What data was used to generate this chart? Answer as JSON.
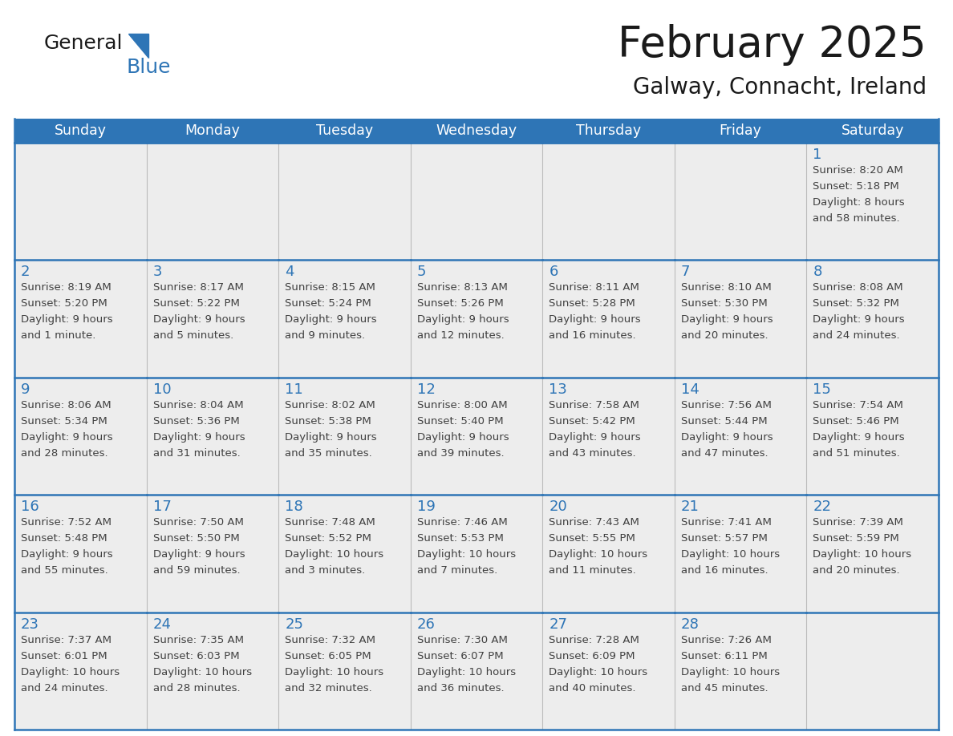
{
  "title": "February 2025",
  "subtitle": "Galway, Connacht, Ireland",
  "header_bg": "#2E75B6",
  "header_text_color": "#FFFFFF",
  "cell_bg_light": "#EDEDED",
  "cell_bg_white": "#FFFFFF",
  "day_number_color": "#2E75B6",
  "detail_text_color": "#404040",
  "border_color": "#2E75B6",
  "days_of_week": [
    "Sunday",
    "Monday",
    "Tuesday",
    "Wednesday",
    "Thursday",
    "Friday",
    "Saturday"
  ],
  "weeks": [
    [
      {
        "day": "",
        "sunrise": "",
        "sunset": "",
        "daylight": ""
      },
      {
        "day": "",
        "sunrise": "",
        "sunset": "",
        "daylight": ""
      },
      {
        "day": "",
        "sunrise": "",
        "sunset": "",
        "daylight": ""
      },
      {
        "day": "",
        "sunrise": "",
        "sunset": "",
        "daylight": ""
      },
      {
        "day": "",
        "sunrise": "",
        "sunset": "",
        "daylight": ""
      },
      {
        "day": "",
        "sunrise": "",
        "sunset": "",
        "daylight": ""
      },
      {
        "day": "1",
        "sunrise": "8:20 AM",
        "sunset": "5:18 PM",
        "daylight": "8 hours\nand 58 minutes."
      }
    ],
    [
      {
        "day": "2",
        "sunrise": "8:19 AM",
        "sunset": "5:20 PM",
        "daylight": "9 hours\nand 1 minute."
      },
      {
        "day": "3",
        "sunrise": "8:17 AM",
        "sunset": "5:22 PM",
        "daylight": "9 hours\nand 5 minutes."
      },
      {
        "day": "4",
        "sunrise": "8:15 AM",
        "sunset": "5:24 PM",
        "daylight": "9 hours\nand 9 minutes."
      },
      {
        "day": "5",
        "sunrise": "8:13 AM",
        "sunset": "5:26 PM",
        "daylight": "9 hours\nand 12 minutes."
      },
      {
        "day": "6",
        "sunrise": "8:11 AM",
        "sunset": "5:28 PM",
        "daylight": "9 hours\nand 16 minutes."
      },
      {
        "day": "7",
        "sunrise": "8:10 AM",
        "sunset": "5:30 PM",
        "daylight": "9 hours\nand 20 minutes."
      },
      {
        "day": "8",
        "sunrise": "8:08 AM",
        "sunset": "5:32 PM",
        "daylight": "9 hours\nand 24 minutes."
      }
    ],
    [
      {
        "day": "9",
        "sunrise": "8:06 AM",
        "sunset": "5:34 PM",
        "daylight": "9 hours\nand 28 minutes."
      },
      {
        "day": "10",
        "sunrise": "8:04 AM",
        "sunset": "5:36 PM",
        "daylight": "9 hours\nand 31 minutes."
      },
      {
        "day": "11",
        "sunrise": "8:02 AM",
        "sunset": "5:38 PM",
        "daylight": "9 hours\nand 35 minutes."
      },
      {
        "day": "12",
        "sunrise": "8:00 AM",
        "sunset": "5:40 PM",
        "daylight": "9 hours\nand 39 minutes."
      },
      {
        "day": "13",
        "sunrise": "7:58 AM",
        "sunset": "5:42 PM",
        "daylight": "9 hours\nand 43 minutes."
      },
      {
        "day": "14",
        "sunrise": "7:56 AM",
        "sunset": "5:44 PM",
        "daylight": "9 hours\nand 47 minutes."
      },
      {
        "day": "15",
        "sunrise": "7:54 AM",
        "sunset": "5:46 PM",
        "daylight": "9 hours\nand 51 minutes."
      }
    ],
    [
      {
        "day": "16",
        "sunrise": "7:52 AM",
        "sunset": "5:48 PM",
        "daylight": "9 hours\nand 55 minutes."
      },
      {
        "day": "17",
        "sunrise": "7:50 AM",
        "sunset": "5:50 PM",
        "daylight": "9 hours\nand 59 minutes."
      },
      {
        "day": "18",
        "sunrise": "7:48 AM",
        "sunset": "5:52 PM",
        "daylight": "10 hours\nand 3 minutes."
      },
      {
        "day": "19",
        "sunrise": "7:46 AM",
        "sunset": "5:53 PM",
        "daylight": "10 hours\nand 7 minutes."
      },
      {
        "day": "20",
        "sunrise": "7:43 AM",
        "sunset": "5:55 PM",
        "daylight": "10 hours\nand 11 minutes."
      },
      {
        "day": "21",
        "sunrise": "7:41 AM",
        "sunset": "5:57 PM",
        "daylight": "10 hours\nand 16 minutes."
      },
      {
        "day": "22",
        "sunrise": "7:39 AM",
        "sunset": "5:59 PM",
        "daylight": "10 hours\nand 20 minutes."
      }
    ],
    [
      {
        "day": "23",
        "sunrise": "7:37 AM",
        "sunset": "6:01 PM",
        "daylight": "10 hours\nand 24 minutes."
      },
      {
        "day": "24",
        "sunrise": "7:35 AM",
        "sunset": "6:03 PM",
        "daylight": "10 hours\nand 28 minutes."
      },
      {
        "day": "25",
        "sunrise": "7:32 AM",
        "sunset": "6:05 PM",
        "daylight": "10 hours\nand 32 minutes."
      },
      {
        "day": "26",
        "sunrise": "7:30 AM",
        "sunset": "6:07 PM",
        "daylight": "10 hours\nand 36 minutes."
      },
      {
        "day": "27",
        "sunrise": "7:28 AM",
        "sunset": "6:09 PM",
        "daylight": "10 hours\nand 40 minutes."
      },
      {
        "day": "28",
        "sunrise": "7:26 AM",
        "sunset": "6:11 PM",
        "daylight": "10 hours\nand 45 minutes."
      },
      {
        "day": "",
        "sunrise": "",
        "sunset": "",
        "daylight": ""
      }
    ]
  ],
  "logo_general_color": "#1a1a1a",
  "logo_blue_color": "#2E75B6",
  "logo_triangle_color": "#2E75B6",
  "title_color": "#1a1a1a",
  "subtitle_color": "#1a1a1a"
}
